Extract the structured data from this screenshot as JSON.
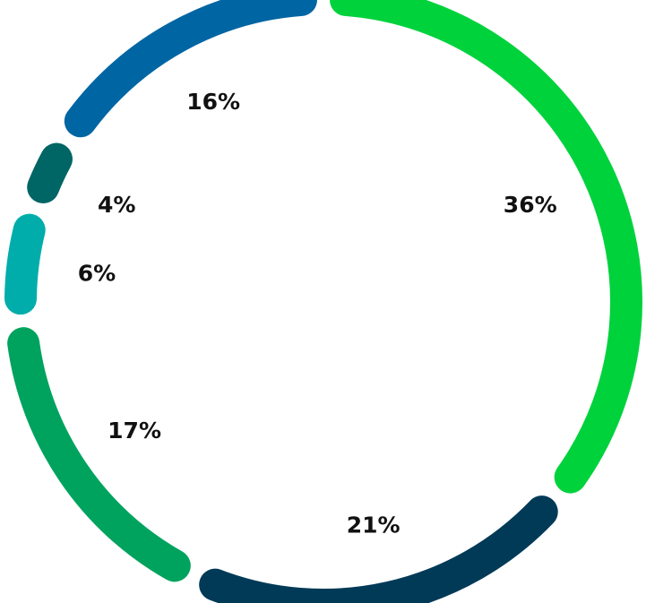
{
  "chart_data": {
    "type": "pie",
    "variant": "donut-ring",
    "slices": [
      {
        "value": 36,
        "label": "36%",
        "color": "#00d23c"
      },
      {
        "value": 21,
        "label": "21%",
        "color": "#003a57"
      },
      {
        "value": 17,
        "label": "17%",
        "color": "#00a35e"
      },
      {
        "value": 6,
        "label": "6%",
        "color": "#00adab"
      },
      {
        "value": 4,
        "label": "4%",
        "color": "#006565"
      },
      {
        "value": 16,
        "label": "16%",
        "color": "#0065a3"
      }
    ],
    "start_position": "top",
    "direction": "clockwise",
    "legend": "none"
  }
}
